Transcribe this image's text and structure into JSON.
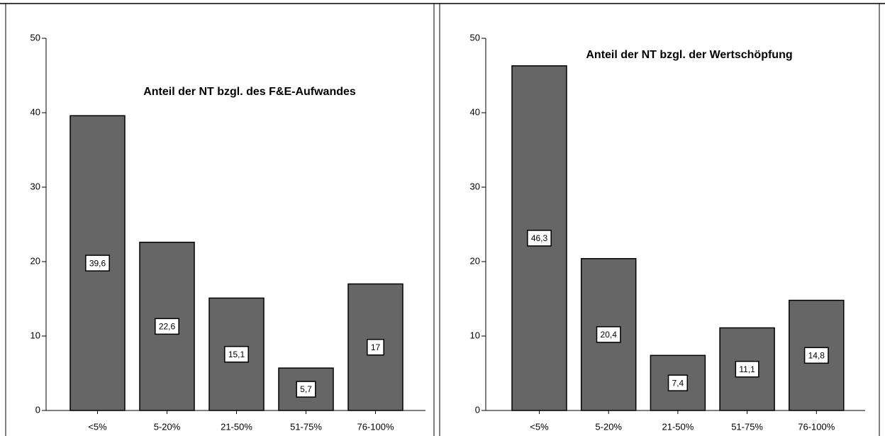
{
  "chart_data": [
    {
      "type": "bar",
      "title": "Anteil der NT bzgl. des F&E-Aufwandes",
      "categories": [
        "<5%",
        "5-20%",
        "21-50%",
        "51-75%",
        "76-100%"
      ],
      "values": [
        39.6,
        22.6,
        15.1,
        5.7,
        17
      ],
      "value_labels": [
        "39,6",
        "22,6",
        "15,1",
        "5,7",
        "17"
      ],
      "color": "#666666",
      "ylim": [
        0,
        50
      ],
      "yticks": [
        0,
        10,
        20,
        30,
        40,
        50
      ]
    },
    {
      "type": "bar",
      "title": "Anteil der NT bzgl. der Wertschöpfung",
      "categories": [
        "<5%",
        "5-20%",
        "21-50%",
        "51-75%",
        "76-100%"
      ],
      "values": [
        46.3,
        20.4,
        7.4,
        11.1,
        14.8
      ],
      "value_labels": [
        "46,3",
        "20,4",
        "7,4",
        "11,1",
        "14,8"
      ],
      "color": "#666666",
      "ylim": [
        0,
        50
      ],
      "yticks": [
        0,
        10,
        20,
        30,
        40,
        50
      ]
    }
  ]
}
